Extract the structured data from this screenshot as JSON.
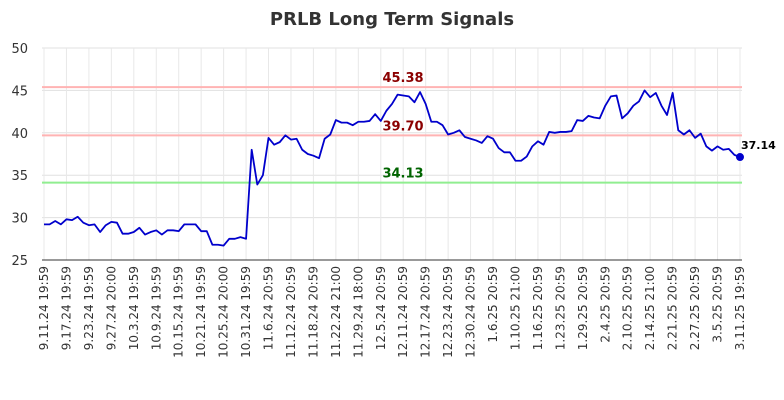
{
  "chart_data": {
    "type": "line",
    "title": "PRLB Long Term Signals",
    "ylim": [
      25,
      50
    ],
    "yticks": [
      25,
      30,
      35,
      40,
      45,
      50
    ],
    "xtick_labels": [
      "9.11.24 19:59",
      "9.17.24 19:59",
      "9.23.24 19:59",
      "9.27.24 20:00",
      "10.3.24 19:59",
      "10.9.24 19:59",
      "10.15.24 19:59",
      "10.21.24 19:59",
      "10.25.24 20:00",
      "10.31.24 19:59",
      "11.6.24 20:59",
      "11.12.24 20:59",
      "11.18.24 20:59",
      "11.22.24 21:00",
      "11.29.24 18:00",
      "12.5.24 20:59",
      "12.11.24 20:59",
      "12.17.24 20:59",
      "12.23.24 20:59",
      "12.30.24 20:59",
      "1.6.25 20:59",
      "1.10.25 21:00",
      "1.16.25 20:59",
      "1.23.25 20:59",
      "1.29.25 20:59",
      "2.4.25 20:59",
      "2.10.25 20:59",
      "2.14.25 21:00",
      "2.21.25 20:59",
      "2.27.25 20:59",
      "3.5.25 20:59",
      "3.11.25 19:59"
    ],
    "grid": true,
    "levels": [
      {
        "value": 45.38,
        "label": "45.38",
        "line_color": "#ffb3b3",
        "text_color": "#8b0000"
      },
      {
        "value": 39.7,
        "label": "39.70",
        "line_color": "#ffb3b3",
        "text_color": "#8b0000"
      },
      {
        "value": 34.13,
        "label": "34.13",
        "line_color": "#90ee90",
        "text_color": "#006400"
      }
    ],
    "series": [
      {
        "color": "#0000cc",
        "values": [
          29.2,
          29.2,
          29.6,
          29.2,
          29.8,
          29.7,
          30.1,
          29.4,
          29.1,
          29.2,
          28.3,
          29.1,
          29.5,
          29.4,
          28.1,
          28.1,
          28.3,
          28.8,
          28.0,
          28.3,
          28.5,
          28.0,
          28.5,
          28.5,
          28.4,
          29.2,
          29.2,
          29.2,
          28.4,
          28.4,
          26.8,
          26.8,
          26.7,
          27.5,
          27.5,
          27.7,
          27.5,
          38.0,
          33.9,
          35.0,
          39.4,
          38.6,
          38.9,
          39.7,
          39.2,
          39.3,
          38.0,
          37.5,
          37.3,
          37.0,
          39.3,
          39.8,
          41.5,
          41.2,
          41.2,
          40.9,
          41.3,
          41.3,
          41.4,
          42.2,
          41.4,
          42.6,
          43.4,
          44.5,
          44.4,
          44.3,
          43.6,
          44.8,
          43.4,
          41.3,
          41.3,
          40.9,
          39.8,
          40.0,
          40.3,
          39.5,
          39.3,
          39.1,
          38.8,
          39.6,
          39.3,
          38.2,
          37.7,
          37.7,
          36.7,
          36.7,
          37.2,
          38.4,
          39.0,
          38.6,
          40.1,
          40.0,
          40.1,
          40.1,
          40.2,
          41.5,
          41.4,
          42.0,
          41.8,
          41.7,
          43.2,
          44.3,
          44.4,
          41.7,
          42.3,
          43.2,
          43.7,
          45.0,
          44.2,
          44.7,
          43.2,
          42.1,
          44.7,
          40.3,
          39.8,
          40.3,
          39.4,
          39.9,
          38.4,
          37.9,
          38.4,
          38.0,
          38.1,
          37.4,
          37.14
        ]
      }
    ],
    "last_value": 37.14,
    "last_label": "37.14"
  }
}
